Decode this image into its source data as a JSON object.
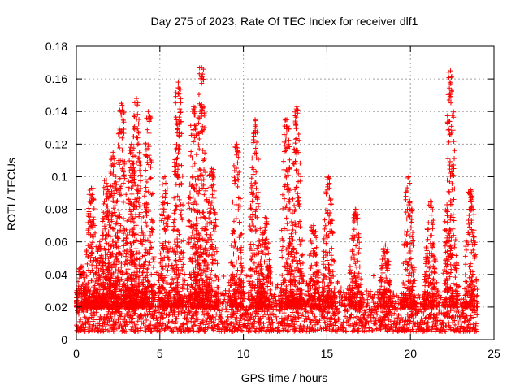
{
  "chart_data": {
    "type": "scatter",
    "title": "Day 275 of 2023, Rate Of TEC Index for receiver dlf1",
    "xlabel": "GPS time / hours",
    "ylabel": "ROTI / TECUs",
    "xlim": [
      0,
      25
    ],
    "ylim": [
      0,
      0.18
    ],
    "xticks": [
      0,
      5,
      10,
      15,
      20,
      25
    ],
    "xtick_labels": [
      "0",
      "5",
      "10",
      "15",
      "20",
      "25"
    ],
    "yticks": [
      0,
      0.02,
      0.04,
      0.06,
      0.08,
      0.1,
      0.12,
      0.14,
      0.16,
      0.18
    ],
    "ytick_labels": [
      "0",
      "0.02",
      "0.04",
      "0.06",
      "0.08",
      "0.1",
      "0.12",
      "0.14",
      "0.16",
      "0.18"
    ],
    "grid": true,
    "marker": "+",
    "color": "#ff0000",
    "series": [
      {
        "name": "ROTI",
        "baseline_range": [
          0.005,
          0.03
        ],
        "peaks": [
          {
            "x": 0.3,
            "y": 0.045
          },
          {
            "x": 0.9,
            "y": 0.093
          },
          {
            "x": 1.4,
            "y": 0.06
          },
          {
            "x": 1.8,
            "y": 0.098
          },
          {
            "x": 2.2,
            "y": 0.115
          },
          {
            "x": 2.7,
            "y": 0.145
          },
          {
            "x": 3.3,
            "y": 0.12
          },
          {
            "x": 3.6,
            "y": 0.148
          },
          {
            "x": 4.3,
            "y": 0.14
          },
          {
            "x": 5.3,
            "y": 0.1
          },
          {
            "x": 6.1,
            "y": 0.158
          },
          {
            "x": 7.0,
            "y": 0.143
          },
          {
            "x": 7.5,
            "y": 0.167
          },
          {
            "x": 8.1,
            "y": 0.105
          },
          {
            "x": 9.6,
            "y": 0.12
          },
          {
            "x": 10.7,
            "y": 0.135
          },
          {
            "x": 11.3,
            "y": 0.075
          },
          {
            "x": 12.6,
            "y": 0.135
          },
          {
            "x": 13.2,
            "y": 0.143
          },
          {
            "x": 14.2,
            "y": 0.07
          },
          {
            "x": 15.1,
            "y": 0.1
          },
          {
            "x": 16.7,
            "y": 0.08
          },
          {
            "x": 18.5,
            "y": 0.058
          },
          {
            "x": 19.9,
            "y": 0.1
          },
          {
            "x": 21.2,
            "y": 0.085
          },
          {
            "x": 22.4,
            "y": 0.165
          },
          {
            "x": 23.6,
            "y": 0.092
          }
        ]
      }
    ]
  }
}
